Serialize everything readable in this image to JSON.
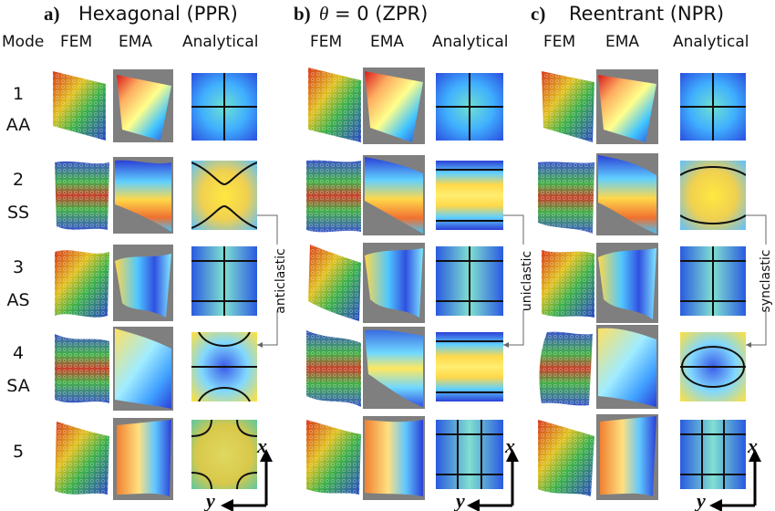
{
  "colors": {
    "gray_bg": "#7f7f7f",
    "line": "#111111"
  },
  "mode_header": "Mode",
  "panels": [
    {
      "label": "a)",
      "title_pre": "",
      "title_theta": "",
      "title": "Hexagonal (PPR)",
      "columns": [
        "FEM",
        "EMA",
        "Analytical"
      ],
      "curvature_label": "anticlastic"
    },
    {
      "label": "b)",
      "title_pre": "",
      "title_theta": "θ",
      "title": " = 0 (ZPR)",
      "columns": [
        "FEM",
        "EMA",
        "Analytical"
      ],
      "curvature_label": "uniclastic"
    },
    {
      "label": "c)",
      "title_pre": "",
      "title_theta": "",
      "title": "Reentrant (NPR)",
      "columns": [
        "FEM",
        "EMA",
        "Analytical"
      ],
      "curvature_label": "synclastic"
    }
  ],
  "modes": [
    {
      "number": "1",
      "type": "AA"
    },
    {
      "number": "2",
      "type": "SS"
    },
    {
      "number": "3",
      "type": "AS"
    },
    {
      "number": "4",
      "type": "SA"
    },
    {
      "number": "5",
      "type": ""
    }
  ],
  "axes": {
    "x": "x",
    "y": "y"
  }
}
